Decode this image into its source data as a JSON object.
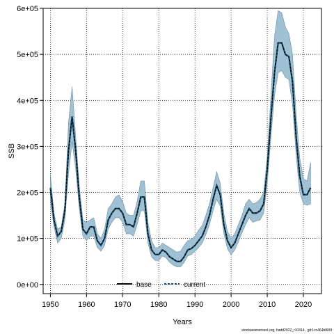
{
  "chart_data": {
    "type": "area",
    "title": "",
    "xlabel": "Years",
    "ylabel": "SSB",
    "xlim": [
      1948,
      2025
    ],
    "ylim": [
      -20000,
      600000
    ],
    "x_ticks": [
      1950,
      1960,
      1970,
      1980,
      1990,
      2000,
      2010,
      2020
    ],
    "x_tick_labels": [
      "1950",
      "1960",
      "1970",
      "1980",
      "1990",
      "2000",
      "2010",
      "2020"
    ],
    "y_ticks": [
      0,
      100000,
      200000,
      300000,
      400000,
      500000,
      600000
    ],
    "y_tick_labels": [
      "0e+00",
      "1e+05",
      "2e+05",
      "3e+05",
      "4e+05",
      "5e+05",
      "6e+05"
    ],
    "grid": true,
    "legend_position": "bottom",
    "colors": {
      "band": "#9fc1d3",
      "band_edge": "#6f8e9f",
      "base": "#000000",
      "current": "#0d4a6e"
    },
    "years": [
      1950,
      1951,
      1952,
      1953,
      1954,
      1955,
      1956,
      1957,
      1958,
      1959,
      1960,
      1961,
      1962,
      1963,
      1964,
      1965,
      1966,
      1967,
      1968,
      1969,
      1970,
      1971,
      1972,
      1973,
      1974,
      1975,
      1976,
      1977,
      1978,
      1979,
      1980,
      1981,
      1982,
      1983,
      1984,
      1985,
      1986,
      1987,
      1988,
      1989,
      1990,
      1991,
      1992,
      1993,
      1994,
      1995,
      1996,
      1997,
      1998,
      1999,
      2000,
      2001,
      2002,
      2003,
      2004,
      2005,
      2006,
      2007,
      2008,
      2009,
      2010,
      2011,
      2012,
      2013,
      2014,
      2015,
      2016,
      2017,
      2018,
      2019,
      2020,
      2021,
      2022
    ],
    "series": [
      {
        "name": "base",
        "style": "solid",
        "values": [
          210000,
          140000,
          105000,
          115000,
          160000,
          290000,
          365000,
          290000,
          190000,
          120000,
          110000,
          125000,
          125000,
          95000,
          85000,
          100000,
          140000,
          155000,
          165000,
          165000,
          155000,
          130000,
          130000,
          125000,
          155000,
          190000,
          190000,
          110000,
          75000,
          65000,
          65000,
          75000,
          70000,
          60000,
          55000,
          50000,
          50000,
          60000,
          75000,
          78000,
          85000,
          95000,
          105000,
          125000,
          150000,
          185000,
          215000,
          195000,
          130000,
          95000,
          80000,
          90000,
          110000,
          130000,
          150000,
          165000,
          155000,
          155000,
          160000,
          175000,
          250000,
          360000,
          460000,
          525000,
          525000,
          500000,
          495000,
          440000,
          320000,
          235000,
          195000,
          195000,
          210000
        ]
      },
      {
        "name": "current",
        "style": "dashed",
        "values": [
          210000,
          140000,
          105000,
          115000,
          160000,
          290000,
          365000,
          290000,
          190000,
          120000,
          110000,
          125000,
          125000,
          95000,
          85000,
          100000,
          140000,
          155000,
          165000,
          165000,
          155000,
          130000,
          130000,
          125000,
          155000,
          190000,
          190000,
          110000,
          75000,
          65000,
          65000,
          75000,
          70000,
          60000,
          55000,
          50000,
          50000,
          60000,
          75000,
          78000,
          85000,
          95000,
          105000,
          125000,
          150000,
          185000,
          215000,
          195000,
          130000,
          95000,
          80000,
          90000,
          110000,
          130000,
          150000,
          165000,
          155000,
          155000,
          160000,
          175000,
          250000,
          360000,
          460000,
          525000,
          525000,
          500000,
          495000,
          440000,
          320000,
          235000,
          195000,
          195000,
          210000
        ]
      }
    ],
    "band_upper": [
      240000,
      155000,
      120000,
      125000,
      175000,
      350000,
      430000,
      320000,
      215000,
      140000,
      135000,
      140000,
      145000,
      110000,
      100000,
      120000,
      165000,
      175000,
      190000,
      195000,
      180000,
      155000,
      150000,
      150000,
      180000,
      225000,
      225000,
      135000,
      95000,
      80000,
      80000,
      90000,
      85000,
      80000,
      75000,
      70000,
      72000,
      85000,
      95000,
      98000,
      105000,
      118000,
      128000,
      150000,
      175000,
      210000,
      245000,
      220000,
      155000,
      115000,
      100000,
      110000,
      130000,
      150000,
      175000,
      185000,
      175000,
      178000,
      185000,
      200000,
      280000,
      410000,
      540000,
      595000,
      590000,
      560000,
      545000,
      500000,
      370000,
      275000,
      230000,
      225000,
      265000
    ],
    "band_lower": [
      180000,
      125000,
      90000,
      100000,
      140000,
      240000,
      310000,
      250000,
      165000,
      105000,
      95000,
      105000,
      105000,
      80000,
      72000,
      85000,
      120000,
      135000,
      145000,
      145000,
      135000,
      110000,
      110000,
      105000,
      130000,
      160000,
      160000,
      90000,
      60000,
      52000,
      52000,
      62000,
      58000,
      48000,
      42000,
      38000,
      38000,
      48000,
      62000,
      65000,
      72000,
      80000,
      90000,
      108000,
      130000,
      160000,
      185000,
      170000,
      110000,
      78000,
      65000,
      75000,
      92000,
      112000,
      130000,
      145000,
      135000,
      138000,
      140000,
      155000,
      220000,
      320000,
      410000,
      460000,
      465000,
      450000,
      445000,
      390000,
      280000,
      200000,
      175000,
      172000,
      175000
    ]
  },
  "legend": {
    "items": [
      "base",
      "current"
    ]
  },
  "footer_text": "stockassessment.org, hadd2022_r10314 , git:1cc464b806f"
}
